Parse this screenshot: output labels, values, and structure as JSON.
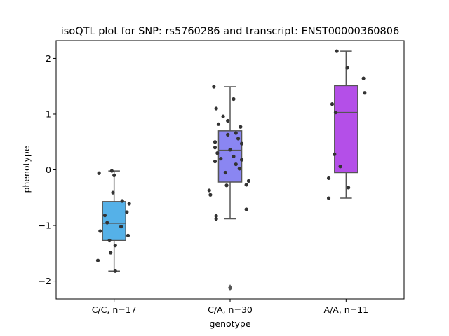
{
  "chart_data": {
    "type": "box",
    "title": "isoQTL plot for SNP: rs5760286 and transcript: ENST00000360806",
    "xlabel": "genotype",
    "ylabel": "phenotype",
    "ylim": [
      -2.32,
      2.32
    ],
    "yticks": [
      -2,
      -1,
      0,
      1,
      2
    ],
    "ytick_labels": [
      "−2",
      "−1",
      "0",
      "1",
      "2"
    ],
    "grid": false,
    "categories": [
      "C/C, n=17",
      "C/A, n=30",
      "A/A, n=11"
    ],
    "boxes": [
      {
        "category": "C/C, n=17",
        "color": "#55b1e8",
        "whisker_low": -1.82,
        "q1": -1.27,
        "median": -0.96,
        "q3": -0.57,
        "whisker_high": -0.02,
        "outliers": [],
        "points": [
          {
            "dx": -0.13,
            "y": -0.06
          },
          {
            "dx": -0.02,
            "y": -0.02
          },
          {
            "dx": 0.0,
            "y": -0.1
          },
          {
            "dx": -0.01,
            "y": -0.41
          },
          {
            "dx": 0.07,
            "y": -0.56
          },
          {
            "dx": 0.13,
            "y": -0.61
          },
          {
            "dx": 0.11,
            "y": -0.76
          },
          {
            "dx": -0.06,
            "y": -0.95
          },
          {
            "dx": 0.06,
            "y": -1.02
          },
          {
            "dx": -0.12,
            "y": -1.1
          },
          {
            "dx": 0.12,
            "y": -1.18
          },
          {
            "dx": -0.04,
            "y": -1.27
          },
          {
            "dx": 0.01,
            "y": -1.36
          },
          {
            "dx": -0.03,
            "y": -1.49
          },
          {
            "dx": -0.14,
            "y": -1.63
          },
          {
            "dx": 0.01,
            "y": -1.82
          },
          {
            "dx": -0.08,
            "y": -0.82
          }
        ]
      },
      {
        "category": "C/A, n=30",
        "color": "#8a86f2",
        "whisker_low": -0.88,
        "q1": -0.22,
        "median": 0.35,
        "q3": 0.7,
        "whisker_high": 1.49,
        "outliers": [
          -2.12
        ],
        "points": [
          {
            "dx": -0.14,
            "y": 1.49
          },
          {
            "dx": 0.03,
            "y": 1.27
          },
          {
            "dx": -0.12,
            "y": 1.1
          },
          {
            "dx": -0.06,
            "y": 0.96
          },
          {
            "dx": -0.02,
            "y": 0.88
          },
          {
            "dx": -0.1,
            "y": 0.82
          },
          {
            "dx": 0.09,
            "y": 0.77
          },
          {
            "dx": 0.05,
            "y": 0.66
          },
          {
            "dx": -0.02,
            "y": 0.63
          },
          {
            "dx": 0.07,
            "y": 0.56
          },
          {
            "dx": -0.13,
            "y": 0.5
          },
          {
            "dx": 0.1,
            "y": 0.47
          },
          {
            "dx": -0.13,
            "y": 0.4
          },
          {
            "dx": 0.0,
            "y": 0.36
          },
          {
            "dx": -0.11,
            "y": 0.3
          },
          {
            "dx": 0.03,
            "y": 0.24
          },
          {
            "dx": -0.08,
            "y": 0.2
          },
          {
            "dx": 0.1,
            "y": 0.18
          },
          {
            "dx": -0.13,
            "y": 0.15
          },
          {
            "dx": 0.05,
            "y": 0.1
          },
          {
            "dx": 0.08,
            "y": 0.02
          },
          {
            "dx": -0.04,
            "y": -0.05
          },
          {
            "dx": 0.16,
            "y": -0.2
          },
          {
            "dx": 0.14,
            "y": -0.27
          },
          {
            "dx": -0.18,
            "y": -0.37
          },
          {
            "dx": -0.17,
            "y": -0.45
          },
          {
            "dx": 0.14,
            "y": -0.71
          },
          {
            "dx": -0.12,
            "y": -0.83
          },
          {
            "dx": -0.12,
            "y": -0.88
          },
          {
            "dx": -0.03,
            "y": -0.28
          }
        ]
      },
      {
        "category": "A/A, n=11",
        "color": "#b44fe8",
        "whisker_low": -0.51,
        "q1": -0.05,
        "median": 1.03,
        "q3": 1.51,
        "whisker_high": 2.13,
        "outliers": [],
        "points": [
          {
            "dx": -0.08,
            "y": 2.13
          },
          {
            "dx": 0.01,
            "y": 1.83
          },
          {
            "dx": 0.15,
            "y": 1.64
          },
          {
            "dx": 0.16,
            "y": 1.38
          },
          {
            "dx": -0.12,
            "y": 1.18
          },
          {
            "dx": -0.09,
            "y": 1.03
          },
          {
            "dx": -0.1,
            "y": 0.28
          },
          {
            "dx": -0.05,
            "y": 0.06
          },
          {
            "dx": -0.15,
            "y": -0.15
          },
          {
            "dx": 0.02,
            "y": -0.32
          },
          {
            "dx": -0.15,
            "y": -0.51
          }
        ]
      }
    ]
  }
}
